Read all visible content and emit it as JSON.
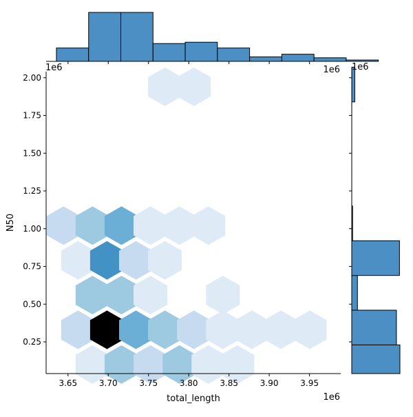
{
  "chart_data": {
    "type": "hexbin-joint",
    "xlabel": "total_length",
    "ylabel": "N50",
    "x_offset_label": "1e6",
    "y_offset_label": "1e6",
    "xlim": [
      3.6228,
      3.9888
    ],
    "ylim": [
      0.04,
      2.04
    ],
    "x_ticks": [
      3.65,
      3.7,
      3.75,
      3.8,
      3.85,
      3.9,
      3.95
    ],
    "x_tick_labels": [
      "3.65",
      "3.70",
      "3.75",
      "3.80",
      "3.85",
      "3.90",
      "3.95"
    ],
    "y_ticks": [
      0.25,
      0.5,
      0.75,
      1.0,
      1.25,
      1.5,
      1.75,
      2.0
    ],
    "y_tick_labels": [
      "0.25",
      "0.50",
      "0.75",
      "1.00",
      "1.25",
      "1.50",
      "1.75",
      "2.00"
    ],
    "hex_colormap": [
      "#ffffff",
      "#deebf7",
      "#c6dbef",
      "#9ecae1",
      "#6baed6",
      "#4292c6",
      "#2171b5",
      "#08519c",
      "#000000"
    ],
    "hexbins": [
      {
        "x": 3.7704,
        "y": 1.94,
        "count": 1
      },
      {
        "x": 3.8064,
        "y": 1.94,
        "count": 1
      },
      {
        "x": 3.6444,
        "y": 1.02,
        "count": 3
      },
      {
        "x": 3.6804,
        "y": 1.02,
        "count": 5
      },
      {
        "x": 3.7164,
        "y": 1.02,
        "count": 6
      },
      {
        "x": 3.7524,
        "y": 1.02,
        "count": 2
      },
      {
        "x": 3.7884,
        "y": 1.02,
        "count": 1
      },
      {
        "x": 3.8244,
        "y": 1.02,
        "count": 1
      },
      {
        "x": 3.6624,
        "y": 0.79,
        "count": 2
      },
      {
        "x": 3.6984,
        "y": 0.79,
        "count": 7
      },
      {
        "x": 3.7344,
        "y": 0.79,
        "count": 3
      },
      {
        "x": 3.7704,
        "y": 0.79,
        "count": 2
      },
      {
        "x": 3.6804,
        "y": 0.56,
        "count": 4
      },
      {
        "x": 3.7164,
        "y": 0.56,
        "count": 5
      },
      {
        "x": 3.7524,
        "y": 0.56,
        "count": 2
      },
      {
        "x": 3.8424,
        "y": 0.56,
        "count": 1
      },
      {
        "x": 3.6624,
        "y": 0.33,
        "count": 3
      },
      {
        "x": 3.6984,
        "y": 0.33,
        "count": 12
      },
      {
        "x": 3.7344,
        "y": 0.33,
        "count": 6
      },
      {
        "x": 3.7704,
        "y": 0.33,
        "count": 4
      },
      {
        "x": 3.8064,
        "y": 0.33,
        "count": 3
      },
      {
        "x": 3.8424,
        "y": 0.33,
        "count": 2
      },
      {
        "x": 3.8784,
        "y": 0.33,
        "count": 2
      },
      {
        "x": 3.9144,
        "y": 0.33,
        "count": 2
      },
      {
        "x": 3.9504,
        "y": 0.33,
        "count": 1
      },
      {
        "x": 3.6804,
        "y": 0.1,
        "count": 1
      },
      {
        "x": 3.7164,
        "y": 0.1,
        "count": 5
      },
      {
        "x": 3.7524,
        "y": 0.1,
        "count": 3
      },
      {
        "x": 3.7884,
        "y": 0.1,
        "count": 5
      },
      {
        "x": 3.8244,
        "y": 0.1,
        "count": 2
      },
      {
        "x": 3.8604,
        "y": 0.1,
        "count": 2
      }
    ],
    "x_marginal": {
      "type": "histogram",
      "bin_edges": [
        3.6356,
        3.6756,
        3.7156,
        3.7556,
        3.7956,
        3.8356,
        3.8756,
        3.9156,
        3.9556,
        3.9956,
        4.0356
      ],
      "counts": [
        3,
        11,
        11,
        4,
        4.3,
        3,
        1,
        1.6,
        0.8,
        0.3
      ],
      "color": "#4c8fc4"
    },
    "y_marginal": {
      "type": "histogram",
      "bins": [
        {
          "lo": 0.0,
          "hi": 0.23,
          "count": 11
        },
        {
          "lo": 0.23,
          "hi": 0.46,
          "count": 10.2
        },
        {
          "lo": 0.46,
          "hi": 0.69,
          "count": 1.3
        },
        {
          "lo": 0.69,
          "hi": 0.92,
          "count": 10.9
        },
        {
          "lo": 0.92,
          "hi": 1.15,
          "count": 0.2
        },
        {
          "lo": 1.15,
          "hi": 1.38,
          "count": 0.01
        },
        {
          "lo": 1.38,
          "hi": 1.61,
          "count": 0.01
        },
        {
          "lo": 1.61,
          "hi": 1.84,
          "count": 0.01
        },
        {
          "lo": 1.84,
          "hi": 2.07,
          "count": 0.7
        }
      ],
      "color": "#4c8fc4"
    }
  }
}
